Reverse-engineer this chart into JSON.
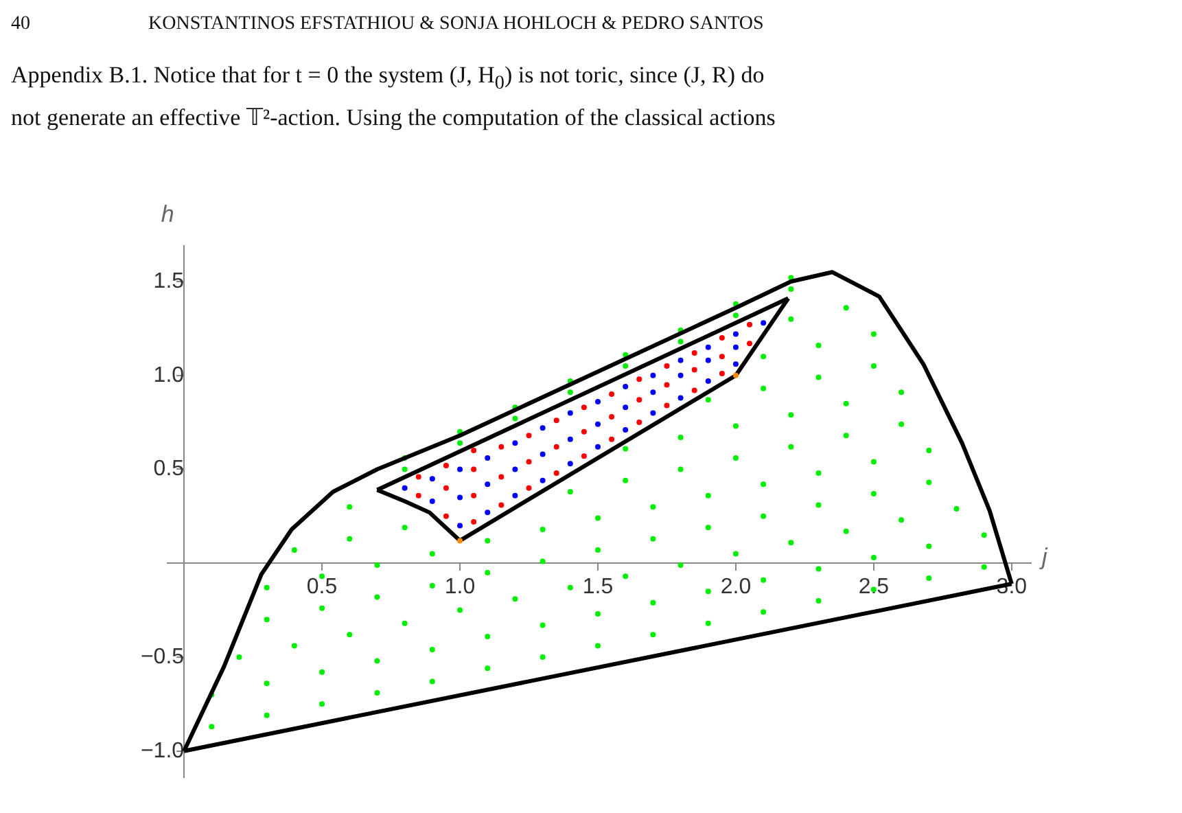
{
  "chart_data": {
    "type": "scatter",
    "annotations": [
      "40",
      "KONSTANTINOS EFSTATHIOU & SONJA HOHLOCH & PEDRO SANTOS",
      "Appendix B.1. Notice that for t = 0 the system (J, H$_{0}$) is not toric, since (J, R) do",
      "not generate an effective 𝕋²-action. Using the computation of the classical actions"
    ],
    "xlabel": "j",
    "ylabel": "h",
    "xlim": [
      -0.06,
      3.07
    ],
    "ylim": [
      -1.14,
      1.69
    ],
    "xticks": [
      0.5,
      {
        "value": 1,
        "label": "1.0"
      },
      1.5,
      {
        "value": 2,
        "label": "2.0"
      },
      2.5,
      {
        "value": 3,
        "label": "3.0"
      }
    ],
    "yticks": [
      {
        "value": -1,
        "label": "−1.0"
      },
      {
        "value": -0.5,
        "label": "−0.5"
      },
      0.5,
      {
        "value": 1,
        "label": "1.0"
      },
      1.5
    ],
    "series": [
      {
        "type": "scatter",
        "marker": "circle",
        "color": "#ff8c00",
        "x": [
          1.0,
          2.0
        ],
        "values": [
          0.12,
          1.0
        ]
      },
      {
        "type": "line",
        "marker": "none",
        "color": "#000000",
        "x": [
          0,
          0.145,
          0.28,
          0.39,
          0.54,
          0.7,
          1.0,
          1.5,
          2.0,
          2.2,
          2.35,
          2.52,
          2.68,
          2.82,
          2.92,
          3.0
        ],
        "values": [
          -1,
          -0.55,
          -0.06,
          0.18,
          0.38,
          0.5,
          0.68,
          1.02,
          1.36,
          1.5,
          1.55,
          1.42,
          1.06,
          0.64,
          0.28,
          -0.11
        ]
      },
      {
        "type": "line",
        "marker": "none",
        "color": "#000000",
        "x": [
          0,
          3.0
        ],
        "values": [
          -1,
          -0.11
        ]
      },
      {
        "type": "line",
        "marker": "none",
        "color": "#000000",
        "x": [
          0.7,
          0.8,
          0.89,
          1.0,
          2.0,
          2.19
        ],
        "values": [
          0.39,
          0.33,
          0.27,
          0.12,
          1.0,
          1.41
        ]
      },
      {
        "type": "line",
        "marker": "none",
        "color": "#000000",
        "x": [
          0.7,
          2.19
        ],
        "values": [
          0.39,
          1.41
        ]
      },
      {
        "type": "scatter",
        "marker": "circle",
        "color": "#00ee00",
        "x": [
          0.1,
          0.3,
          0.5,
          0.7,
          0.9,
          1.1,
          1.3,
          1.5,
          1.7,
          1.9,
          2.1,
          2.3,
          2.5,
          2.7,
          2.9,
          0.1,
          0.3,
          0.5,
          0.7,
          0.9,
          1.1,
          1.3,
          1.5,
          1.7,
          1.9,
          2.1,
          2.3,
          2.5,
          2.7,
          2.9,
          0.2,
          0.4,
          0.6,
          0.8,
          1.0,
          1.2,
          1.4,
          1.6,
          1.8,
          2.0,
          2.2,
          2.4,
          2.6,
          2.8,
          0.3,
          0.5,
          0.7,
          0.9,
          1.1,
          1.3,
          1.5,
          1.7,
          1.9,
          2.1,
          2.3,
          2.5,
          2.7,
          0.3,
          0.5,
          0.7,
          0.9,
          1.1,
          1.3,
          1.5,
          1.7,
          1.9,
          2.1,
          2.3,
          2.5,
          2.7,
          0.4,
          0.6,
          0.8,
          1.4,
          1.6,
          1.8,
          2.0,
          2.2,
          2.4,
          2.6,
          0.6,
          1.6,
          1.8,
          2.0,
          2.2,
          2.4,
          2.6,
          1.9,
          2.1,
          2.3,
          2.5,
          2.1,
          2.3,
          2.5,
          2.2,
          2.4,
          0.8,
          0.8,
          1.0,
          1.0,
          1.2,
          1.2,
          1.4,
          1.4,
          1.6,
          1.6,
          1.8,
          1.8,
          2.0,
          2.0,
          2.2,
          2.2
        ],
        "values": [
          -0.87,
          -0.81,
          -0.75,
          -0.69,
          -0.63,
          -0.56,
          -0.5,
          -0.44,
          -0.38,
          -0.32,
          -0.26,
          -0.2,
          -0.14,
          -0.08,
          -0.02,
          -0.7,
          -0.64,
          -0.58,
          -0.52,
          -0.46,
          -0.39,
          -0.33,
          -0.27,
          -0.21,
          -0.15,
          -0.09,
          -0.03,
          0.03,
          0.09,
          0.15,
          -0.5,
          -0.44,
          -0.38,
          -0.32,
          -0.25,
          -0.19,
          -0.13,
          -0.07,
          -0.01,
          0.05,
          0.11,
          0.17,
          0.23,
          0.29,
          -0.3,
          -0.24,
          -0.18,
          -0.12,
          -0.05,
          0.01,
          0.07,
          0.13,
          0.19,
          0.25,
          0.31,
          0.37,
          0.43,
          -0.13,
          -0.07,
          -0.01,
          0.05,
          0.12,
          0.18,
          0.24,
          0.3,
          0.36,
          0.42,
          0.48,
          0.54,
          0.6,
          0.07,
          0.13,
          0.19,
          0.38,
          0.44,
          0.5,
          0.56,
          0.62,
          0.68,
          0.74,
          0.3,
          0.61,
          0.67,
          0.73,
          0.79,
          0.85,
          0.91,
          0.87,
          0.93,
          0.99,
          1.05,
          1.1,
          1.16,
          1.22,
          1.3,
          1.36,
          0.5,
          0.56,
          0.64,
          0.7,
          0.77,
          0.83,
          0.91,
          0.97,
          1.05,
          1.11,
          1.18,
          1.24,
          1.32,
          1.38,
          1.46,
          1.52
        ]
      },
      {
        "type": "scatter",
        "marker": "circle",
        "color": "#0000ff",
        "x": [
          0.8,
          0.9,
          0.9,
          1.0,
          1.0,
          1.0,
          1.1,
          1.1,
          1.1,
          1.2,
          1.2,
          1.2,
          1.3,
          1.3,
          1.3,
          1.4,
          1.4,
          1.4,
          1.5,
          1.5,
          1.5,
          1.6,
          1.6,
          1.6,
          1.7,
          1.7,
          1.7,
          1.8,
          1.8,
          1.8,
          1.9,
          1.9,
          1.9,
          2.0,
          2.0,
          2.0,
          2.1
        ],
        "values": [
          0.4,
          0.33,
          0.45,
          0.2,
          0.35,
          0.5,
          0.27,
          0.42,
          0.56,
          0.36,
          0.5,
          0.64,
          0.44,
          0.58,
          0.72,
          0.53,
          0.66,
          0.8,
          0.62,
          0.74,
          0.86,
          0.71,
          0.83,
          0.94,
          0.8,
          0.91,
          1.0,
          0.88,
          1.0,
          1.08,
          0.97,
          1.08,
          1.15,
          1.06,
          1.15,
          1.22,
          1.28
        ]
      },
      {
        "type": "scatter",
        "marker": "circle",
        "color": "#ff0000",
        "x": [
          0.85,
          0.85,
          0.95,
          0.95,
          0.95,
          1.05,
          1.05,
          1.05,
          1.05,
          1.15,
          1.15,
          1.15,
          1.25,
          1.25,
          1.25,
          1.35,
          1.35,
          1.35,
          1.45,
          1.45,
          1.45,
          1.55,
          1.55,
          1.55,
          1.65,
          1.65,
          1.65,
          1.75,
          1.75,
          1.75,
          1.85,
          1.85,
          1.85,
          1.95,
          1.95,
          1.95,
          2.05,
          2.05
        ],
        "values": [
          0.36,
          0.46,
          0.25,
          0.4,
          0.52,
          0.22,
          0.36,
          0.5,
          0.6,
          0.31,
          0.46,
          0.62,
          0.4,
          0.54,
          0.68,
          0.48,
          0.62,
          0.76,
          0.57,
          0.7,
          0.83,
          0.66,
          0.78,
          0.9,
          0.75,
          0.87,
          0.98,
          0.84,
          0.95,
          1.05,
          0.92,
          1.03,
          1.12,
          1.01,
          1.1,
          1.2,
          1.17,
          1.27
        ]
      }
    ]
  }
}
